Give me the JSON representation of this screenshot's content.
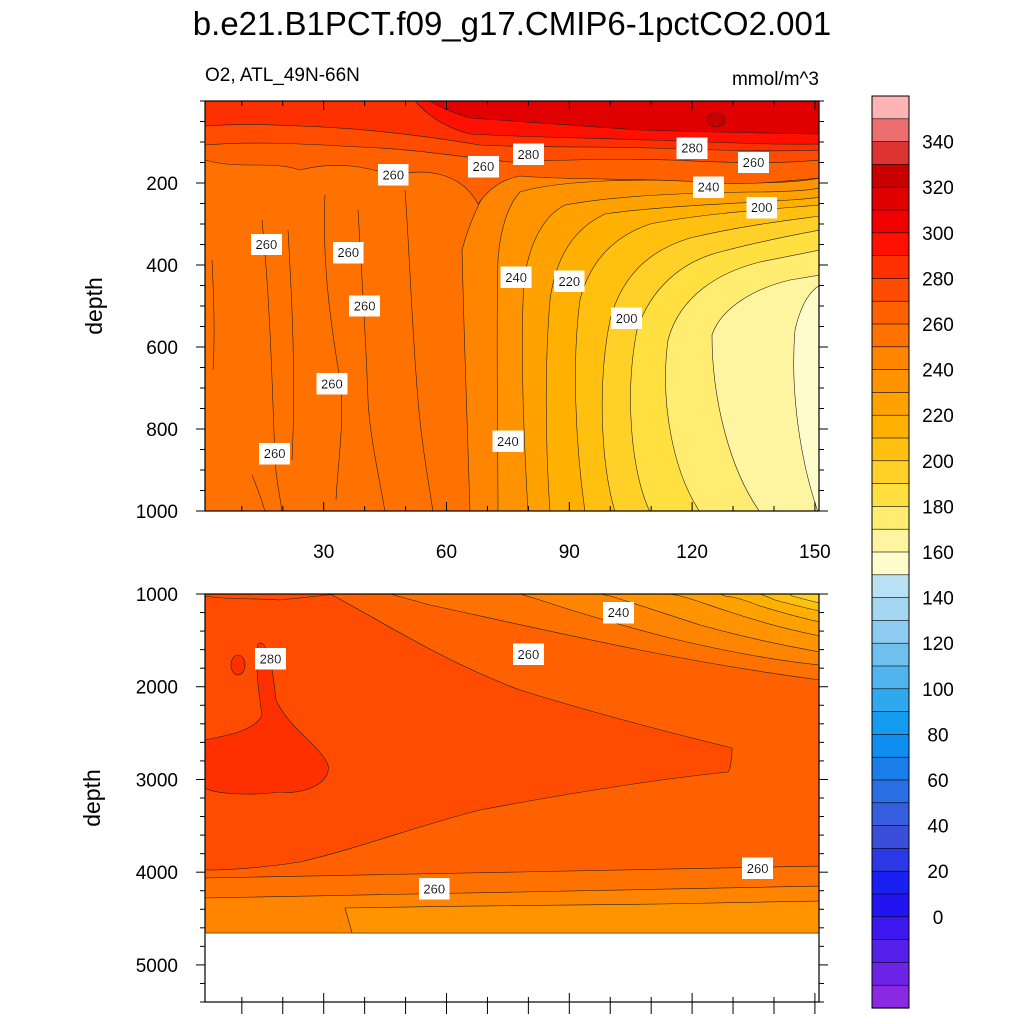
{
  "title": "b.e21.B1PCT.f09_g17.CMIP6-1pctCO2.001",
  "subtitle_left": "O2, ATL_49N-66N",
  "subtitle_right": "mmol/m^3",
  "chart_data": [
    {
      "type": "heatmap",
      "name_panel": "upper",
      "variable": "O2",
      "region": "ATL_49N-66N",
      "units": "mmol/m^3",
      "xlabel": "",
      "ylabel": "depth",
      "xlim": [
        1,
        151
      ],
      "ylim": [
        1000,
        0
      ],
      "x_ticks": [
        30,
        60,
        90,
        120,
        150
      ],
      "y_ticks": [
        200,
        400,
        600,
        800,
        1000
      ],
      "contour_labels": [
        {
          "value": 260,
          "x": 16,
          "y": 350
        },
        {
          "value": 260,
          "x": 36,
          "y": 370
        },
        {
          "value": 260,
          "x": 40,
          "y": 500
        },
        {
          "value": 260,
          "x": 32,
          "y": 690
        },
        {
          "value": 260,
          "x": 18,
          "y": 860
        },
        {
          "value": 260,
          "x": 47,
          "y": 180
        },
        {
          "value": 260,
          "x": 69,
          "y": 160
        },
        {
          "value": 280,
          "x": 80,
          "y": 130
        },
        {
          "value": 280,
          "x": 120,
          "y": 115
        },
        {
          "value": 260,
          "x": 135,
          "y": 150
        },
        {
          "value": 240,
          "x": 124,
          "y": 210
        },
        {
          "value": 200,
          "x": 137,
          "y": 260
        },
        {
          "value": 240,
          "x": 77,
          "y": 430
        },
        {
          "value": 220,
          "x": 90,
          "y": 440
        },
        {
          "value": 200,
          "x": 104,
          "y": 530
        },
        {
          "value": 240,
          "x": 75,
          "y": 830
        }
      ]
    },
    {
      "type": "heatmap",
      "name_panel": "lower",
      "variable": "O2",
      "xlabel": "",
      "ylabel": "depth",
      "xlim": [
        1,
        151
      ],
      "ylim": [
        5400,
        1000
      ],
      "y_ticks": [
        1000,
        2000,
        3000,
        4000,
        5000
      ],
      "missing_below_depth": 4620,
      "contour_labels": [
        {
          "value": 240,
          "x": 102,
          "y": 1200
        },
        {
          "value": 260,
          "x": 80,
          "y": 1650
        },
        {
          "value": 280,
          "x": 17,
          "y": 1700
        },
        {
          "value": 260,
          "x": 57,
          "y": 4180
        },
        {
          "value": 260,
          "x": 136,
          "y": 3960
        }
      ]
    }
  ],
  "colorbar": {
    "labels": [
      "340",
      "320",
      "300",
      "280",
      "260",
      "240",
      "220",
      "200",
      "180",
      "160",
      "140",
      "120",
      "100",
      "80",
      "60",
      "40",
      "20",
      "0"
    ],
    "colors_top_to_bottom": [
      "#ffb4b4",
      "#ec6e6e",
      "#dd3333",
      "#c80000",
      "#e00000",
      "#f00000",
      "#ff1000",
      "#ff3000",
      "#ff4c00",
      "#ff6000",
      "#ff7200",
      "#ff8400",
      "#ff9400",
      "#ffa200",
      "#ffb000",
      "#ffc010",
      "#ffd028",
      "#ffe040",
      "#ffec70",
      "#fff5a0",
      "#fffccc",
      "#bae0f4",
      "#a4d6f2",
      "#8ecbf0",
      "#70c0ee",
      "#50b4ee",
      "#30a8ee",
      "#149cf0",
      "#0e8ef0",
      "#1a7eea",
      "#2a6ee4",
      "#365ede",
      "#3a4eda",
      "#2c38e6",
      "#1a20f2",
      "#2214f0",
      "#3c18ee",
      "#5420ea",
      "#6e24e6",
      "#8a28e2"
    ]
  }
}
